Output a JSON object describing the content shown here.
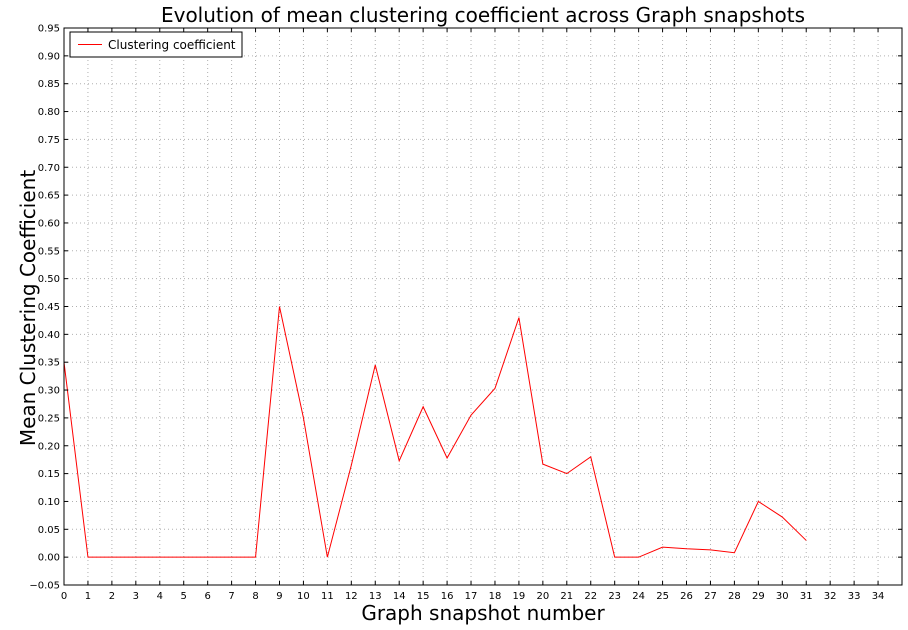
{
  "chart_data": {
    "type": "line",
    "title": "Evolution of mean clustering coefficient across Graph snapshots",
    "xlabel": "Graph snapshot number",
    "ylabel": "Mean Clustering Coefficient",
    "xlim": [
      0,
      35
    ],
    "ylim": [
      -0.05,
      0.95
    ],
    "xticks": [
      0,
      1,
      2,
      3,
      4,
      5,
      6,
      7,
      8,
      9,
      10,
      11,
      12,
      13,
      14,
      15,
      16,
      17,
      18,
      19,
      20,
      21,
      22,
      23,
      24,
      25,
      26,
      27,
      28,
      29,
      30,
      31,
      32,
      33,
      34
    ],
    "yticks": [
      -0.05,
      0.0,
      0.05,
      0.1,
      0.15,
      0.2,
      0.25,
      0.3,
      0.35,
      0.4,
      0.45,
      0.5,
      0.55,
      0.6,
      0.65,
      0.7,
      0.75,
      0.8,
      0.85,
      0.9,
      0.95
    ],
    "ytick_labels": [
      "−0.05",
      "0.00",
      "0.05",
      "0.10",
      "0.15",
      "0.20",
      "0.25",
      "0.30",
      "0.35",
      "0.40",
      "0.45",
      "0.50",
      "0.55",
      "0.60",
      "0.65",
      "0.70",
      "0.75",
      "0.80",
      "0.85",
      "0.90",
      "0.95"
    ],
    "grid": true,
    "legend_position": "top-left",
    "series": [
      {
        "name": "Clustering coefficient",
        "color": "#ff0000",
        "x": [
          0,
          1,
          2,
          3,
          4,
          5,
          6,
          7,
          8,
          9,
          10,
          11,
          12,
          13,
          14,
          15,
          16,
          17,
          18,
          19,
          20,
          21,
          22,
          23,
          24,
          25,
          26,
          27,
          28,
          29,
          30,
          31
        ],
        "values": [
          0.35,
          0.0,
          0.0,
          0.0,
          0.0,
          0.0,
          0.0,
          0.0,
          0.0,
          0.45,
          0.25,
          0.0,
          0.165,
          0.345,
          0.173,
          0.27,
          0.178,
          0.255,
          0.303,
          0.43,
          0.167,
          0.15,
          0.18,
          0.0,
          0.0,
          0.018,
          0.015,
          0.013,
          0.008,
          0.1,
          0.072,
          0.03
        ]
      }
    ]
  }
}
